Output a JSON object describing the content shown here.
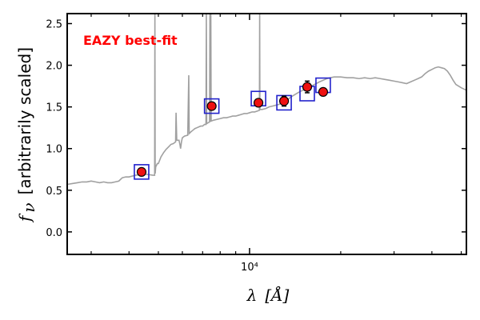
{
  "chart_data": {
    "type": "scatter",
    "title": "",
    "annotation": "EAZY best-fit",
    "annotation_color": "#ff0000",
    "xlabel_math": "λ",
    "xlabel_unit": "[Å]",
    "ylabel_math": "f",
    "ylabel_sub": "ν",
    "ylabel_text": "[arbitrarily scaled]",
    "xscale": "log",
    "xlim": [
      2500,
      52000
    ],
    "ylim": [
      -0.27,
      2.62
    ],
    "yticks": [
      0.0,
      0.5,
      1.0,
      1.5,
      2.0,
      2.5
    ],
    "ytick_labels": [
      "0.0",
      "0.5",
      "1.0",
      "1.5",
      "2.0",
      "2.5"
    ],
    "xticks_major": [
      10000
    ],
    "xtick_major_labels": [
      "10⁴"
    ],
    "xticks_minor": [
      3000,
      4000,
      5000,
      6000,
      7000,
      8000,
      9000,
      20000,
      30000,
      40000,
      50000
    ],
    "grid": false,
    "series": [
      {
        "kind": "observed",
        "marker": "circle",
        "color": "#ee1111",
        "points": [
          {
            "x": 4400,
            "y": 0.72,
            "err": 0.02
          },
          {
            "x": 7500,
            "y": 1.51,
            "err": 0.04
          },
          {
            "x": 10700,
            "y": 1.55,
            "err": 0.04
          },
          {
            "x": 13000,
            "y": 1.57,
            "err": 0.06
          },
          {
            "x": 15500,
            "y": 1.74,
            "err": 0.07
          },
          {
            "x": 17500,
            "y": 1.68,
            "err": 0.04
          }
        ]
      },
      {
        "kind": "model_photometry",
        "marker": "square",
        "color": "#2222cc",
        "points": [
          {
            "x": 4400,
            "y": 0.72
          },
          {
            "x": 7500,
            "y": 1.51
          },
          {
            "x": 10700,
            "y": 1.6
          },
          {
            "x": 13000,
            "y": 1.55
          },
          {
            "x": 15500,
            "y": 1.66
          },
          {
            "x": 17500,
            "y": 1.76
          }
        ]
      },
      {
        "kind": "template",
        "line": true,
        "color": "#a0a0a0",
        "points": [
          [
            2500,
            0.57
          ],
          [
            2600,
            0.58
          ],
          [
            2700,
            0.59
          ],
          [
            2800,
            0.6
          ],
          [
            2900,
            0.6
          ],
          [
            3000,
            0.61
          ],
          [
            3100,
            0.6
          ],
          [
            3200,
            0.59
          ],
          [
            3300,
            0.6
          ],
          [
            3400,
            0.59
          ],
          [
            3500,
            0.59
          ],
          [
            3600,
            0.6
          ],
          [
            3700,
            0.61
          ],
          [
            3800,
            0.65
          ],
          [
            3900,
            0.66
          ],
          [
            4000,
            0.66
          ],
          [
            4200,
            0.68
          ],
          [
            4400,
            0.69
          ],
          [
            4600,
            0.69
          ],
          [
            4800,
            0.68
          ],
          [
            4860,
            0.68
          ],
          [
            4870,
            2.62
          ],
          [
            4880,
            0.7
          ],
          [
            4900,
            0.78
          ],
          [
            4960,
            0.82
          ],
          [
            5000,
            0.82
          ],
          [
            5100,
            0.9
          ],
          [
            5200,
            0.95
          ],
          [
            5300,
            0.99
          ],
          [
            5400,
            1.02
          ],
          [
            5500,
            1.05
          ],
          [
            5600,
            1.06
          ],
          [
            5700,
            1.08
          ],
          [
            5720,
            1.43
          ],
          [
            5750,
            1.1
          ],
          [
            5850,
            1.1
          ],
          [
            5890,
            1.05
          ],
          [
            5920,
            1.0
          ],
          [
            5960,
            1.08
          ],
          [
            6000,
            1.13
          ],
          [
            6100,
            1.15
          ],
          [
            6250,
            1.16
          ],
          [
            6300,
            1.88
          ],
          [
            6320,
            1.18
          ],
          [
            6400,
            1.2
          ],
          [
            6500,
            1.22
          ],
          [
            6600,
            1.24
          ],
          [
            6700,
            1.25
          ],
          [
            6800,
            1.26
          ],
          [
            6900,
            1.27
          ],
          [
            7000,
            1.27
          ],
          [
            7100,
            1.29
          ],
          [
            7180,
            1.29
          ],
          [
            7200,
            2.62
          ],
          [
            7220,
            1.3
          ],
          [
            7300,
            1.31
          ],
          [
            7380,
            1.32
          ],
          [
            7400,
            2.62
          ],
          [
            7420,
            1.33
          ],
          [
            7440,
            1.33
          ],
          [
            7450,
            2.62
          ],
          [
            7470,
            1.33
          ],
          [
            7600,
            1.34
          ],
          [
            7800,
            1.35
          ],
          [
            8000,
            1.36
          ],
          [
            8200,
            1.37
          ],
          [
            8400,
            1.37
          ],
          [
            8600,
            1.38
          ],
          [
            8800,
            1.39
          ],
          [
            9000,
            1.39
          ],
          [
            9200,
            1.4
          ],
          [
            9400,
            1.41
          ],
          [
            9600,
            1.42
          ],
          [
            9800,
            1.42
          ],
          [
            10000,
            1.43
          ],
          [
            10200,
            1.44
          ],
          [
            10400,
            1.44
          ],
          [
            10600,
            1.45
          ],
          [
            10780,
            1.46
          ],
          [
            10800,
            2.62
          ],
          [
            10820,
            1.47
          ],
          [
            11000,
            1.47
          ],
          [
            11300,
            1.48
          ],
          [
            11600,
            1.5
          ],
          [
            11900,
            1.51
          ],
          [
            12200,
            1.52
          ],
          [
            12500,
            1.53
          ],
          [
            12800,
            1.55
          ],
          [
            13100,
            1.57
          ],
          [
            13400,
            1.59
          ],
          [
            13700,
            1.62
          ],
          [
            14000,
            1.64
          ],
          [
            14300,
            1.66
          ],
          [
            14600,
            1.68
          ],
          [
            15000,
            1.7
          ],
          [
            15400,
            1.72
          ],
          [
            15800,
            1.74
          ],
          [
            16200,
            1.76
          ],
          [
            16600,
            1.78
          ],
          [
            17000,
            1.8
          ],
          [
            17500,
            1.82
          ],
          [
            18000,
            1.84
          ],
          [
            18500,
            1.85
          ],
          [
            19000,
            1.86
          ],
          [
            20000,
            1.86
          ],
          [
            21000,
            1.85
          ],
          [
            22000,
            1.85
          ],
          [
            23000,
            1.84
          ],
          [
            24000,
            1.85
          ],
          [
            25000,
            1.84
          ],
          [
            26000,
            1.85
          ],
          [
            27000,
            1.84
          ],
          [
            28000,
            1.83
          ],
          [
            29000,
            1.82
          ],
          [
            30000,
            1.81
          ],
          [
            31000,
            1.8
          ],
          [
            32000,
            1.79
          ],
          [
            33000,
            1.78
          ],
          [
            34000,
            1.8
          ],
          [
            35000,
            1.82
          ],
          [
            36000,
            1.84
          ],
          [
            37000,
            1.86
          ],
          [
            38000,
            1.9
          ],
          [
            39000,
            1.93
          ],
          [
            40000,
            1.95
          ],
          [
            41000,
            1.97
          ],
          [
            42000,
            1.98
          ],
          [
            43000,
            1.97
          ],
          [
            44000,
            1.96
          ],
          [
            45000,
            1.93
          ],
          [
            46000,
            1.88
          ],
          [
            47000,
            1.82
          ],
          [
            48000,
            1.77
          ],
          [
            50000,
            1.73
          ],
          [
            52000,
            1.7
          ]
        ]
      }
    ]
  }
}
